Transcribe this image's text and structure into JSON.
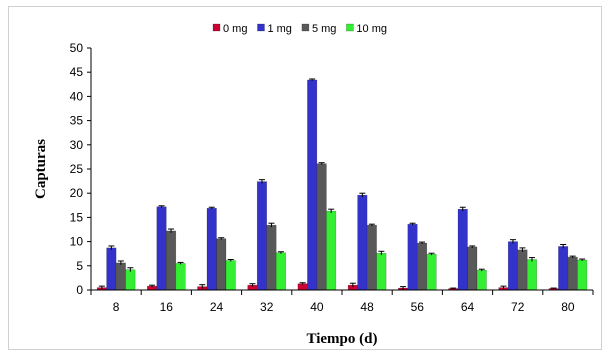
{
  "chart_data": {
    "type": "bar",
    "title": "",
    "xlabel": "Tiempo (d)",
    "ylabel": "Capturas",
    "ylim": [
      0,
      50
    ],
    "yticks": [
      0,
      5,
      10,
      15,
      20,
      25,
      30,
      35,
      40,
      45,
      50
    ],
    "grid": false,
    "legend": "top",
    "categories": [
      "8",
      "16",
      "24",
      "32",
      "40",
      "48",
      "56",
      "64",
      "72",
      "80"
    ],
    "series": [
      {
        "name": "0 mg",
        "color": "#cc0033",
        "values": [
          0.5,
          0.8,
          0.7,
          1.0,
          1.3,
          1.0,
          0.4,
          0.3,
          0.5,
          0.3
        ],
        "errors": [
          0.3,
          0.2,
          0.4,
          0.3,
          0.2,
          0.4,
          0.3,
          0.1,
          0.3,
          0.1
        ]
      },
      {
        "name": "1 mg",
        "color": "#3333cc",
        "values": [
          8.7,
          17.2,
          16.9,
          22.4,
          43.4,
          19.6,
          13.6,
          16.7,
          10.0,
          9.0
        ],
        "errors": [
          0.4,
          0.2,
          0.2,
          0.4,
          0.2,
          0.4,
          0.2,
          0.4,
          0.4,
          0.4
        ]
      },
      {
        "name": "5 mg",
        "color": "#595959",
        "values": [
          5.6,
          12.2,
          10.6,
          13.4,
          26.1,
          13.4,
          9.7,
          8.9,
          8.3,
          6.8
        ],
        "errors": [
          0.4,
          0.4,
          0.2,
          0.4,
          0.2,
          0.2,
          0.2,
          0.2,
          0.4,
          0.2
        ]
      },
      {
        "name": "10 mg",
        "color": "#33ee33",
        "values": [
          4.2,
          5.5,
          6.1,
          7.7,
          16.3,
          7.6,
          7.4,
          4.1,
          6.3,
          6.2
        ],
        "errors": [
          0.4,
          0.2,
          0.2,
          0.2,
          0.4,
          0.4,
          0.2,
          0.2,
          0.4,
          0.2
        ]
      }
    ]
  }
}
